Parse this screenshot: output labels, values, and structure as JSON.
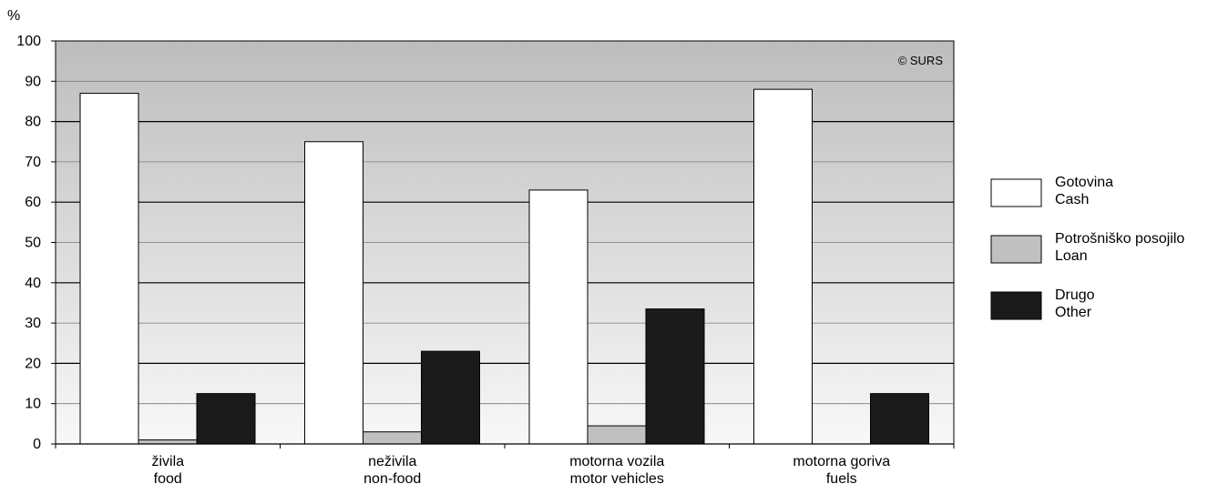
{
  "chart_data": {
    "type": "bar",
    "unit_label": "%",
    "ylim": [
      0,
      100
    ],
    "yticks": [
      0,
      10,
      20,
      30,
      40,
      50,
      60,
      70,
      80,
      90,
      100
    ],
    "categories": [
      [
        "živila",
        "food"
      ],
      [
        "neživila",
        "non-food"
      ],
      [
        "motorna vozila",
        "motor vehicles"
      ],
      [
        "motorna goriva",
        "fuels"
      ]
    ],
    "series": [
      {
        "name": [
          "Gotovina",
          "Cash"
        ],
        "color": "#ffffff",
        "values": [
          87,
          75,
          63,
          88
        ]
      },
      {
        "name": [
          "Potrošniško posojilo",
          "Loan"
        ],
        "color": "#c0c0c0",
        "values": [
          1,
          3,
          4.5,
          0
        ]
      },
      {
        "name": [
          "Drugo",
          "Other"
        ],
        "color": "#1a1a1a",
        "values": [
          12.5,
          23,
          33.5,
          12.5
        ]
      }
    ],
    "legend_position": "right",
    "grid": true,
    "copyright": "© SURS"
  }
}
